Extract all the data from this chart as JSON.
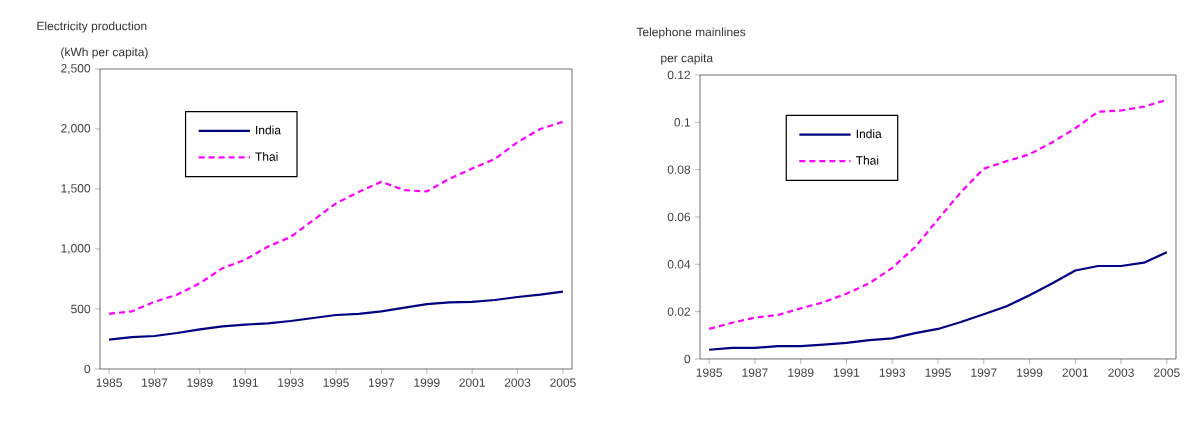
{
  "chart_data": [
    {
      "type": "line",
      "title": "Electricity production",
      "ylabel": "(kWh per capita)",
      "x": [
        1985,
        1986,
        1987,
        1988,
        1989,
        1990,
        1991,
        1992,
        1993,
        1994,
        1995,
        1996,
        1997,
        1998,
        1999,
        2000,
        2001,
        2002,
        2003,
        2004,
        2005
      ],
      "series": [
        {
          "name": "India",
          "color": "#000080",
          "line_style": "solid",
          "values": [
            245,
            265,
            275,
            300,
            330,
            355,
            370,
            380,
            400,
            425,
            450,
            460,
            480,
            510,
            540,
            555,
            560,
            575,
            600,
            620,
            645
          ]
        },
        {
          "name": "Thai",
          "color": "#ff00ff",
          "line_style": "dashed",
          "values": [
            460,
            480,
            560,
            620,
            715,
            840,
            910,
            1020,
            1100,
            1240,
            1380,
            1475,
            1560,
            1490,
            1480,
            1585,
            1670,
            1750,
            1890,
            2000,
            2060
          ]
        }
      ],
      "xlim": [
        1984.6,
        2005.4
      ],
      "xticks": [
        1985,
        1987,
        1989,
        1991,
        1993,
        1995,
        1997,
        1999,
        2001,
        2003,
        2005
      ],
      "ylim": [
        0,
        2500
      ],
      "yticks": [
        0,
        500,
        {
          "value": 1000,
          "label": "1,000"
        },
        {
          "value": 1500,
          "label": "1,500"
        },
        {
          "value": 2000,
          "label": "2,000"
        },
        {
          "value": 2500,
          "label": "2,500"
        }
      ],
      "grid": false,
      "legend": "top left",
      "marker": "none"
    },
    {
      "type": "line",
      "title": "Telephone mainlines",
      "ylabel": "per capita",
      "x": [
        1985,
        1986,
        1987,
        1988,
        1989,
        1990,
        1991,
        1992,
        1993,
        1994,
        1995,
        1996,
        1997,
        1998,
        1999,
        2000,
        2001,
        2002,
        2003,
        2004,
        2005
      ],
      "series": [
        {
          "name": "India",
          "color": "#000080",
          "line_style": "solid",
          "values": [
            0.0039,
            0.0047,
            0.0047,
            0.0054,
            0.0054,
            0.0061,
            0.0068,
            0.008,
            0.0087,
            0.0109,
            0.0127,
            0.0156,
            0.0189,
            0.0223,
            0.0269,
            0.032,
            0.0374,
            0.0393,
            0.0393,
            0.0407,
            0.0451
          ]
        },
        {
          "name": "Thai",
          "color": "#ff00ff",
          "line_style": "dashed",
          "values": [
            0.0127,
            0.0153,
            0.0175,
            0.0186,
            0.0214,
            0.024,
            0.0276,
            0.032,
            0.0385,
            0.0473,
            0.059,
            0.0705,
            0.0804,
            0.0836,
            0.0865,
            0.0916,
            0.0975,
            0.1045,
            0.105,
            0.1066,
            0.1095
          ]
        }
      ],
      "xlim": [
        1984.6,
        2005.4
      ],
      "xticks": [
        1985,
        1987,
        1989,
        1991,
        1993,
        1995,
        1997,
        1999,
        2001,
        2003,
        2005
      ],
      "ylim": [
        0,
        0.12
      ],
      "yticks": [
        0,
        0.02,
        0.04,
        0.06,
        0.08,
        0.1,
        0.12
      ],
      "grid": false,
      "legend": "top left",
      "marker": "none"
    }
  ]
}
